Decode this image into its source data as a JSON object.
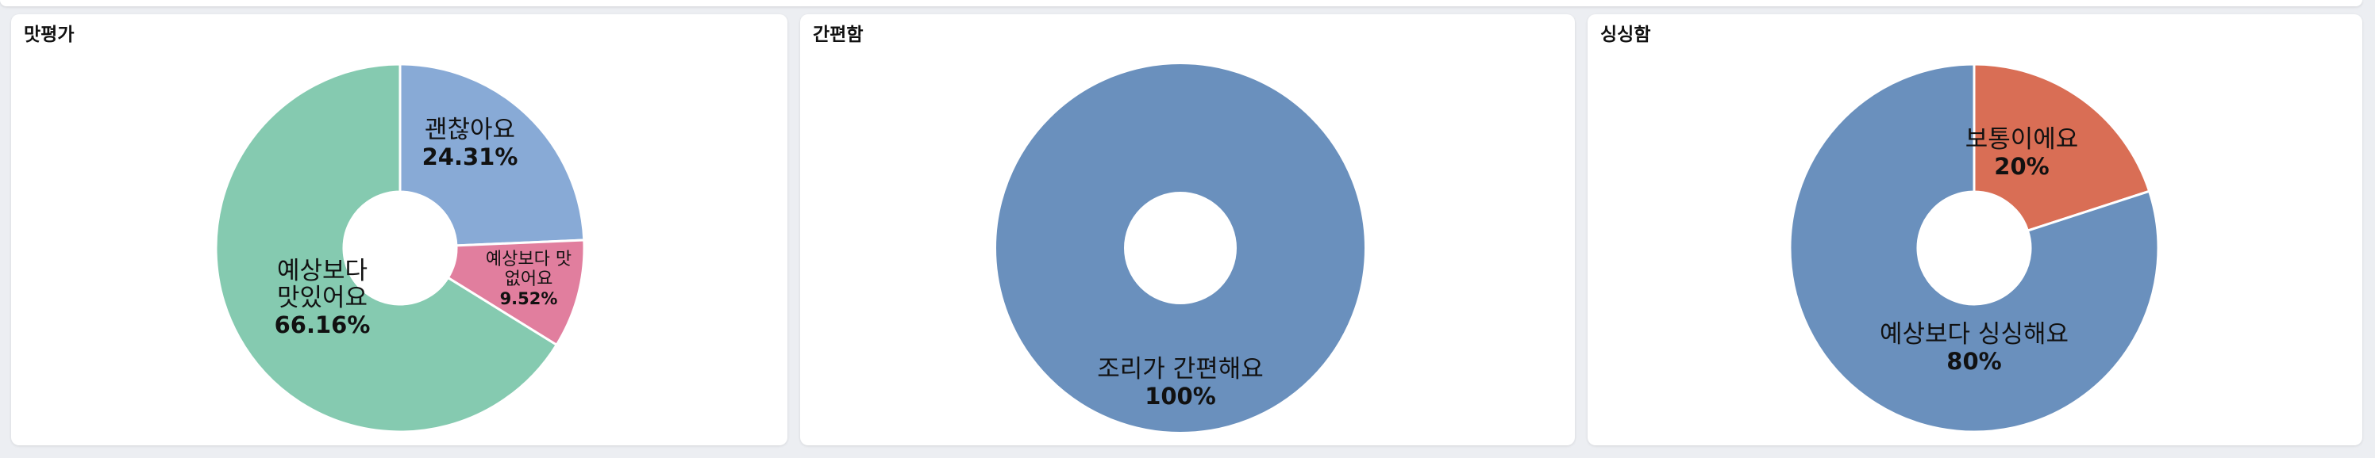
{
  "chart_data": [
    {
      "type": "pie",
      "title": "맛평가",
      "slices": [
        {
          "label": "괜찮아요",
          "pct_label": "24.31%",
          "value": 24.31,
          "color": "#88aad6",
          "label_lines": [
            "괜찮아요"
          ]
        },
        {
          "label": "예상보다 맛 없어요",
          "pct_label": "9.52%",
          "value": 9.52,
          "color": "#e17e9e",
          "label_lines": [
            "예상보다 맛",
            "없어요"
          ]
        },
        {
          "label": "예상보다 맛있어요",
          "pct_label": "66.16%",
          "value": 66.16,
          "color": "#85cab0",
          "label_lines": [
            "예상보다",
            "맛있어요"
          ]
        }
      ]
    },
    {
      "type": "pie",
      "title": "간편함",
      "slices": [
        {
          "label": "조리가 간편해요",
          "pct_label": "100%",
          "value": 100,
          "color": "#6a90bd",
          "label_lines": [
            "조리가 간편해요"
          ]
        }
      ]
    },
    {
      "type": "pie",
      "title": "싱싱함",
      "slices": [
        {
          "label": "보통이에요",
          "pct_label": "20%",
          "value": 20,
          "color": "#d96e55",
          "label_lines": [
            "보통이에요"
          ]
        },
        {
          "label": "예상보다 싱싱해요",
          "pct_label": "80%",
          "value": 80,
          "color": "#6a90bd",
          "label_lines": [
            "예상보다 싱싱해요"
          ]
        }
      ]
    }
  ]
}
